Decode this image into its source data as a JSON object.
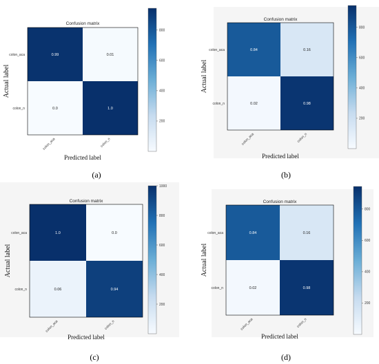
{
  "chart_data": [
    {
      "type": "heatmap",
      "title": "Confusion matrix",
      "xlabel": "Predicted label",
      "ylabel": "Actual label",
      "row_labels": [
        "colon_aca",
        "colon_n"
      ],
      "col_labels": [
        "colon_aca",
        "colon_n"
      ],
      "values": [
        [
          0.99,
          0.01
        ],
        [
          0.0,
          1.0
        ]
      ],
      "cell_text": [
        [
          "0.99",
          "0.01"
        ],
        [
          "0.0",
          "1.0"
        ]
      ],
      "colorbar_ticks": [
        "200",
        "400",
        "600",
        "800"
      ],
      "caption": "(a)"
    },
    {
      "type": "heatmap",
      "title": "Confusion matrix",
      "xlabel": "Predicted label",
      "ylabel": "Actual label",
      "row_labels": [
        "colon_aca",
        "colon_n"
      ],
      "col_labels": [
        "colon_aca",
        "colon_n"
      ],
      "values": [
        [
          0.84,
          0.16
        ],
        [
          0.02,
          0.98
        ]
      ],
      "cell_text": [
        [
          "0.84",
          "0.16"
        ],
        [
          "0.02",
          "0.98"
        ]
      ],
      "colorbar_ticks": [
        "200",
        "400",
        "600",
        "800"
      ],
      "caption": "(b)"
    },
    {
      "type": "heatmap",
      "title": "Confusion matrix",
      "xlabel": "Predicted label",
      "ylabel": "Actual label",
      "row_labels": [
        "colon_aca",
        "colon_n"
      ],
      "col_labels": [
        "colon_aca",
        "colon_n"
      ],
      "values": [
        [
          1.0,
          0.0
        ],
        [
          0.06,
          0.94
        ]
      ],
      "cell_text": [
        [
          "1.0",
          "0.0"
        ],
        [
          "0.06",
          "0.94"
        ]
      ],
      "colorbar_ticks": [
        "200",
        "400",
        "600",
        "800",
        "1000"
      ],
      "caption": "(c)"
    },
    {
      "type": "heatmap",
      "title": "Confusion matrix",
      "xlabel": "Predicted label",
      "ylabel": "Actual label",
      "row_labels": [
        "colon_aca",
        "colon_n"
      ],
      "col_labels": [
        "colon_aca",
        "colon_n"
      ],
      "values": [
        [
          0.84,
          0.16
        ],
        [
          0.02,
          0.98
        ]
      ],
      "cell_text": [
        [
          "0.84",
          "0.16"
        ],
        [
          "0.02",
          "0.98"
        ]
      ],
      "colorbar_ticks": [
        "200",
        "400",
        "600",
        "800"
      ],
      "caption": "(d)"
    }
  ],
  "colors": {
    "low": "#f7fbff",
    "high": "#08306b",
    "background_gray": "#f5f5f5"
  }
}
